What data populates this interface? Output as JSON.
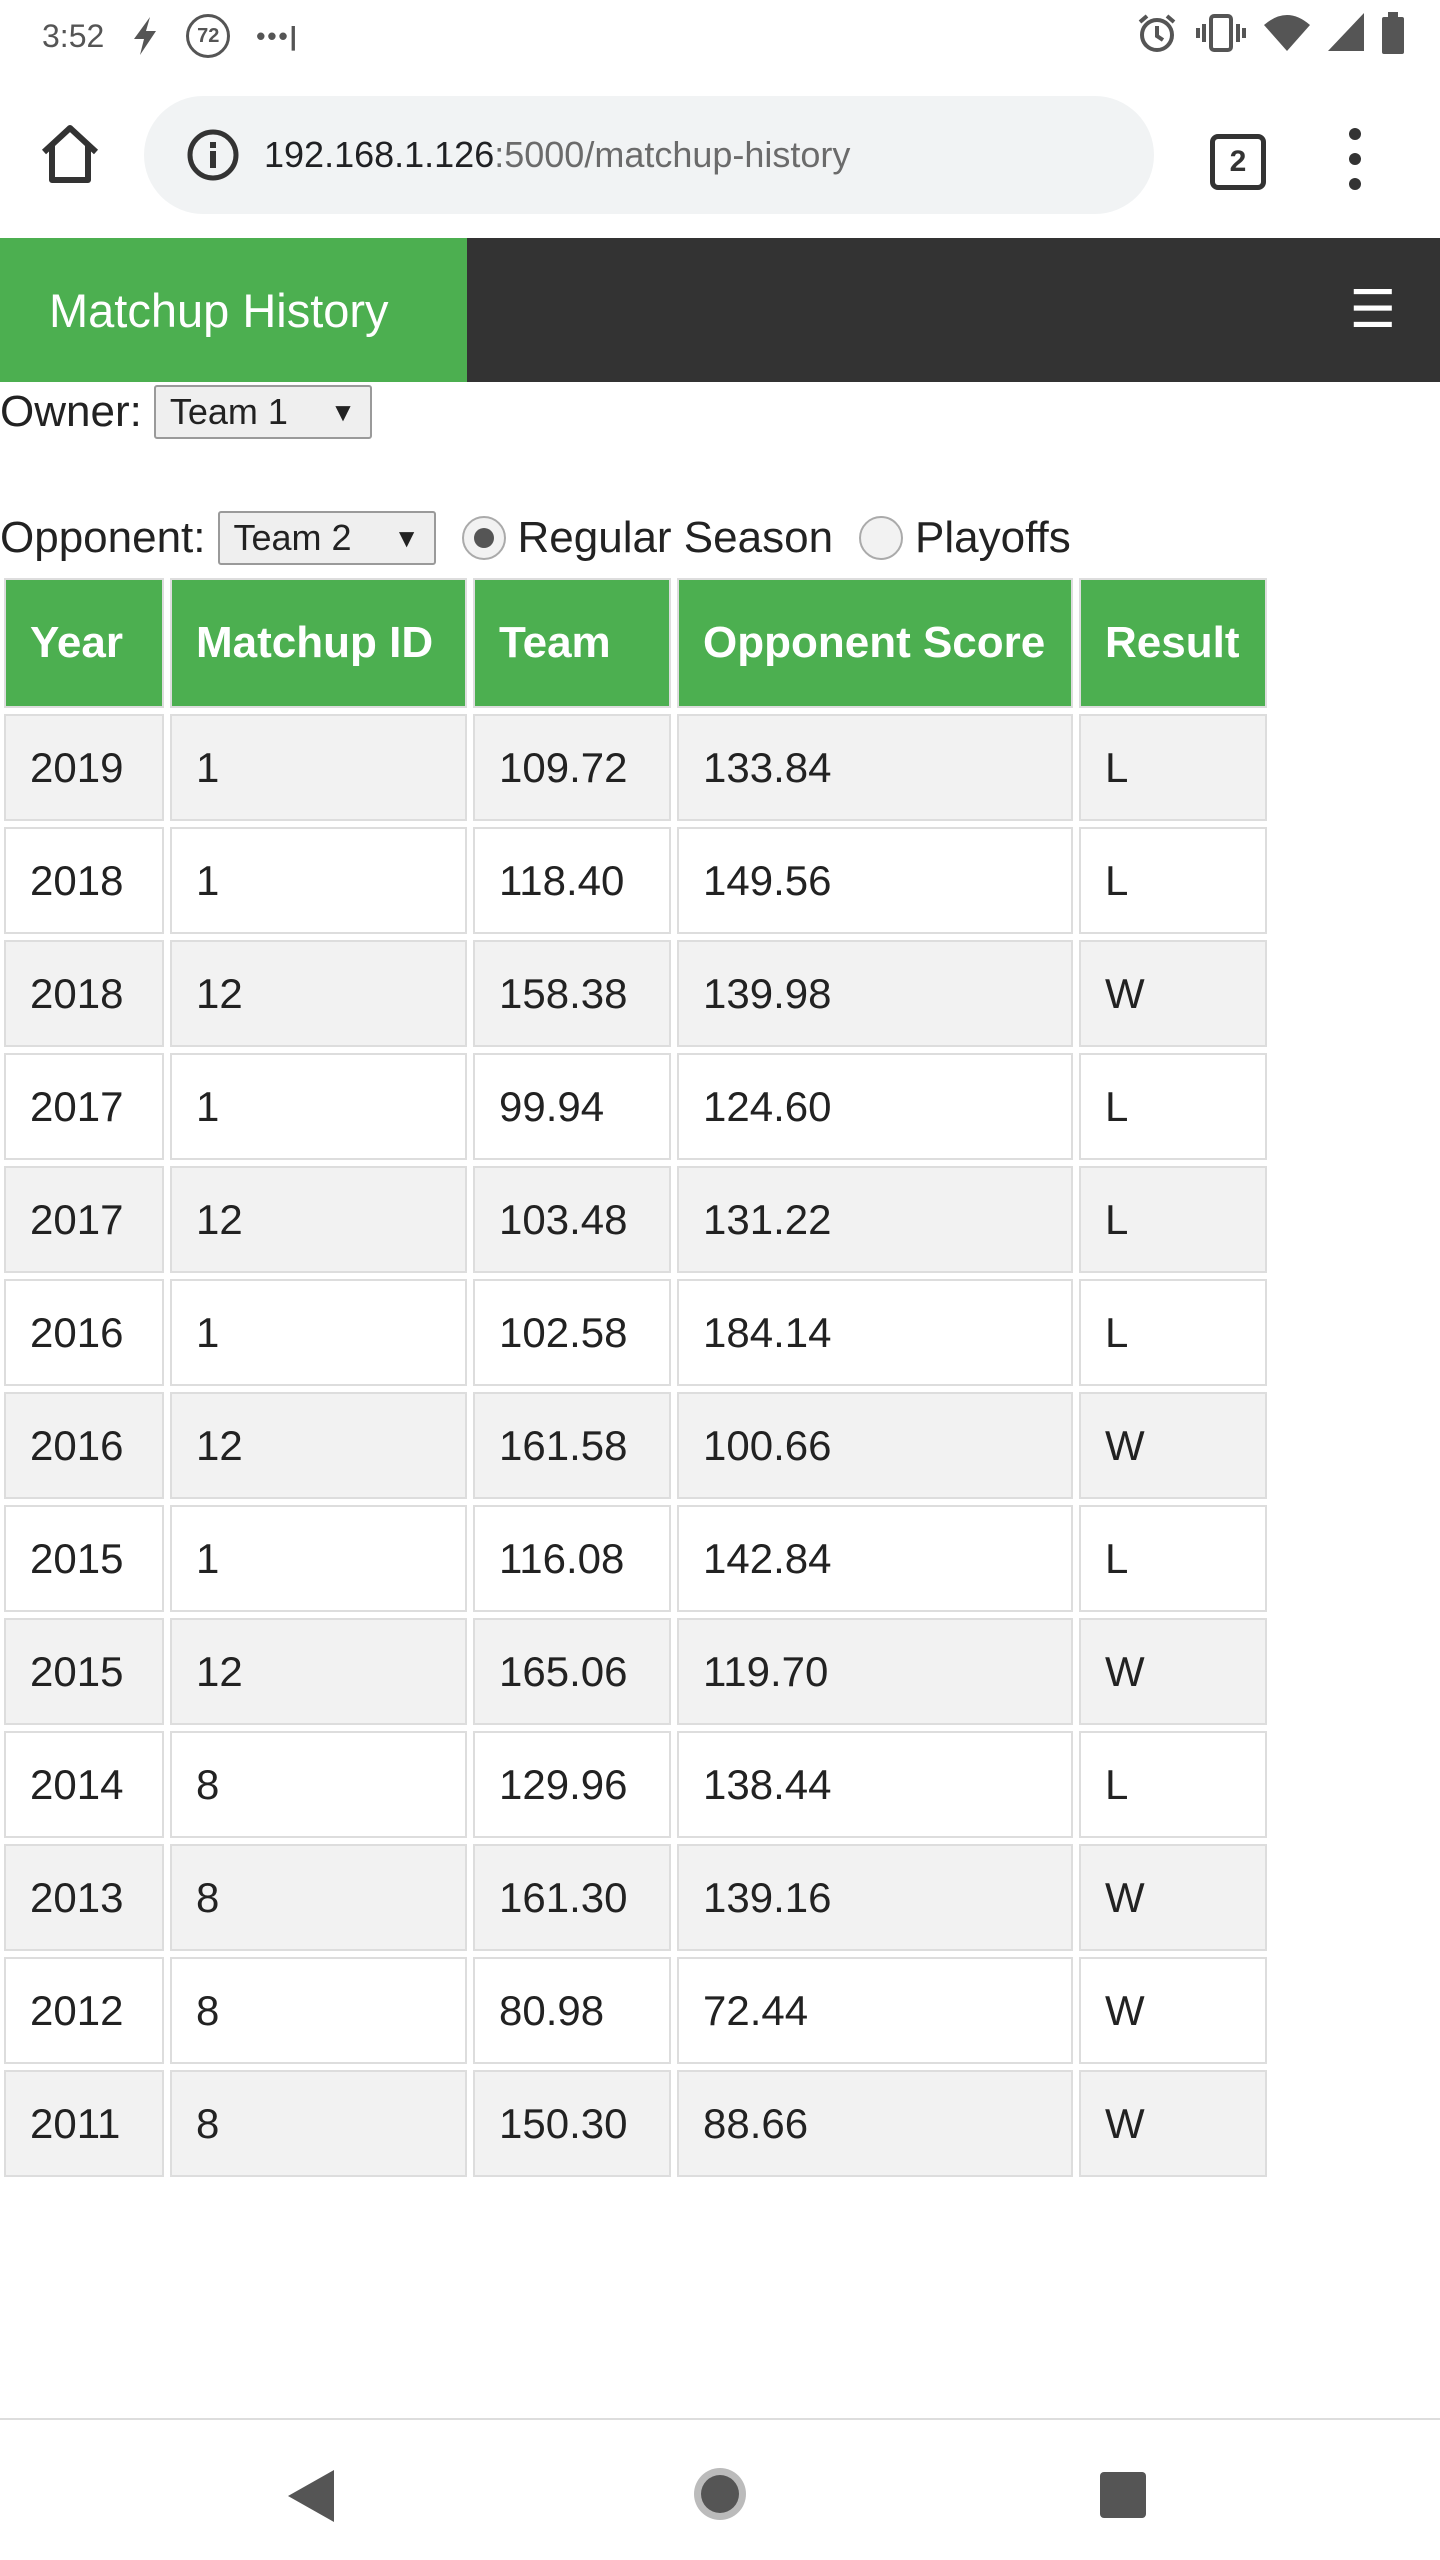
{
  "status_bar": {
    "time": "3:52",
    "notification_badge": "72",
    "dots": "•••|",
    "icons": [
      "bolt-icon",
      "alarm-icon",
      "vibrate-icon",
      "wifi-icon",
      "signal-icon",
      "battery-icon"
    ]
  },
  "browser": {
    "url_host": "192.168.1.126",
    "url_rest": ":5000/matchup-history",
    "tab_count": "2"
  },
  "navbar": {
    "active_label": "Matchup History",
    "menu_glyph": "☰"
  },
  "filters": {
    "owner_label": "Owner:",
    "owner_value": "Team 1",
    "opponent_label": "Opponent:",
    "opponent_value": "Team 2",
    "radio_regular": "Regular Season",
    "radio_playoffs": "Playoffs",
    "selected": "Regular Season"
  },
  "table": {
    "headers": [
      "Year",
      "Matchup ID",
      "Team",
      "Opponent Score",
      "Result"
    ],
    "rows": [
      [
        "2019",
        "1",
        "109.72",
        "133.84",
        "L"
      ],
      [
        "2018",
        "1",
        "118.40",
        "149.56",
        "L"
      ],
      [
        "2018",
        "12",
        "158.38",
        "139.98",
        "W"
      ],
      [
        "2017",
        "1",
        "99.94",
        "124.60",
        "L"
      ],
      [
        "2017",
        "12",
        "103.48",
        "131.22",
        "L"
      ],
      [
        "2016",
        "1",
        "102.58",
        "184.14",
        "L"
      ],
      [
        "2016",
        "12",
        "161.58",
        "100.66",
        "W"
      ],
      [
        "2015",
        "1",
        "116.08",
        "142.84",
        "L"
      ],
      [
        "2015",
        "12",
        "165.06",
        "119.70",
        "W"
      ],
      [
        "2014",
        "8",
        "129.96",
        "138.44",
        "L"
      ],
      [
        "2013",
        "8",
        "161.30",
        "139.16",
        "W"
      ],
      [
        "2012",
        "8",
        "80.98",
        "72.44",
        "W"
      ],
      [
        "2011",
        "8",
        "150.30",
        "88.66",
        "W"
      ]
    ]
  },
  "colors": {
    "accent": "#4caf50",
    "navbar": "#333333",
    "row_alt": "#f2f2f2"
  }
}
